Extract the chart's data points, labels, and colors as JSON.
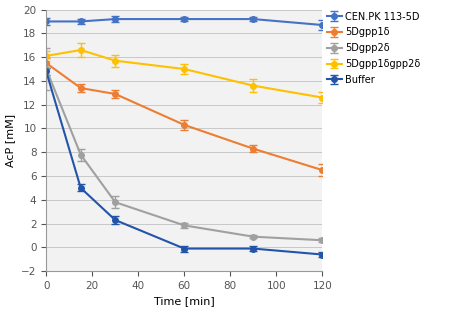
{
  "title": "",
  "xlabel": "Time [min]",
  "ylabel": "AcP [mM]",
  "xlim": [
    0,
    120
  ],
  "ylim": [
    -2,
    20
  ],
  "yticks": [
    -2,
    0,
    2,
    4,
    6,
    8,
    10,
    12,
    14,
    16,
    18,
    20
  ],
  "xticks": [
    0,
    20,
    40,
    60,
    80,
    100,
    120
  ],
  "series": [
    {
      "label": "CEN.PK 113-5D",
      "color": "#4472C4",
      "marker": "o",
      "x": [
        0,
        15,
        30,
        60,
        90,
        120
      ],
      "y": [
        19.0,
        19.0,
        19.2,
        19.2,
        19.2,
        18.7
      ],
      "yerr": [
        0.3,
        0.2,
        0.25,
        0.2,
        0.2,
        0.4
      ]
    },
    {
      "label": "5Dgpp1δ",
      "color": "#ED7D31",
      "marker": "o",
      "x": [
        0,
        15,
        30,
        60,
        90,
        120
      ],
      "y": [
        15.5,
        13.4,
        12.9,
        10.3,
        8.3,
        6.5
      ],
      "yerr": [
        0.4,
        0.3,
        0.35,
        0.4,
        0.3,
        0.5
      ]
    },
    {
      "label": "5Dgpp2δ",
      "color": "#A0A0A0",
      "marker": "o",
      "x": [
        0,
        15,
        30,
        60,
        90,
        120
      ],
      "y": [
        15.0,
        7.8,
        3.8,
        1.85,
        0.9,
        0.6
      ],
      "yerr": [
        1.8,
        0.5,
        0.5,
        0.2,
        0.15,
        0.15
      ]
    },
    {
      "label": "5Dgpp1δgpp2δ",
      "color": "#FFC000",
      "marker": "o",
      "x": [
        0,
        15,
        30,
        60,
        90,
        120
      ],
      "y": [
        16.1,
        16.6,
        15.7,
        15.0,
        13.6,
        12.6
      ],
      "yerr": [
        0.4,
        0.6,
        0.5,
        0.45,
        0.55,
        0.5
      ]
    },
    {
      "label": "Buffer",
      "color": "#2255AA",
      "marker": "o",
      "x": [
        0,
        15,
        30,
        60,
        90,
        120
      ],
      "y": [
        14.8,
        5.0,
        2.3,
        -0.1,
        -0.1,
        -0.6
      ],
      "yerr": [
        0.3,
        0.3,
        0.3,
        0.25,
        0.2,
        0.25
      ]
    }
  ],
  "figsize": [
    4.74,
    3.12
  ],
  "dpi": 100,
  "bg_color": "#F2F2F2"
}
